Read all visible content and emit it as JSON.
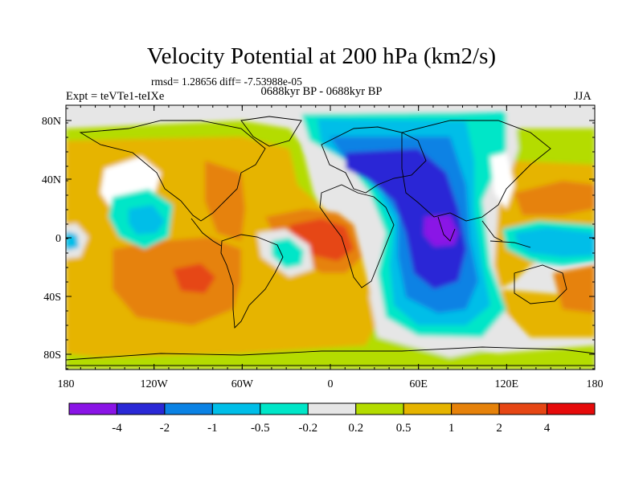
{
  "title": "Velocity Potential at 200 hPa (km2/s)",
  "stats": "rmsd= 1.28656 diff= -7.53988e-05",
  "period": "0688kyr BP - 0688kyr BP",
  "experiment": "Expt = teVTe1-teIXe",
  "season": "JJA",
  "lat_ticks": [
    "80N",
    "40N",
    "0",
    "40S",
    "80S"
  ],
  "lon_ticks": [
    "180",
    "120W",
    "60W",
    "0",
    "60E",
    "120E",
    "180"
  ],
  "colorbar": {
    "colors": [
      "#8a14e6",
      "#2a28d6",
      "#0a82e4",
      "#00bee8",
      "#00e6c8",
      "#e6e6e6",
      "#b4dc00",
      "#e6b400",
      "#e6820a",
      "#e64614",
      "#e60a0a"
    ],
    "labels": [
      "-4",
      "-2",
      "-1",
      "-0.5",
      "-0.2",
      "0.2",
      "0.5",
      "1",
      "2",
      "4"
    ]
  }
}
